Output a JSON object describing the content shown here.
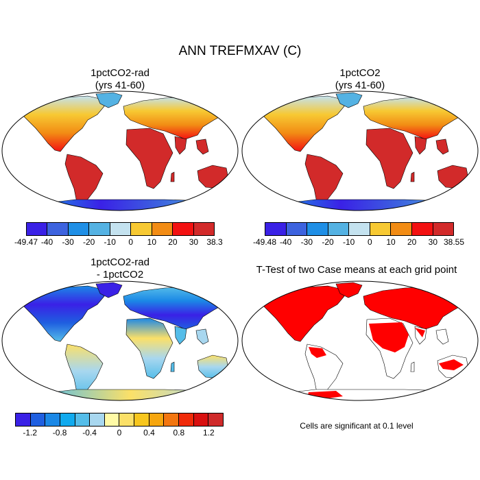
{
  "title": "ANN TREFMXAV (C)",
  "panels": [
    {
      "id": "p1",
      "title_line1": "1pctCO2-rad",
      "title_line2": "(yrs 41-60)",
      "kind": "abs"
    },
    {
      "id": "p2",
      "title_line1": "1pctCO2",
      "title_line2": "(yrs 41-60)",
      "kind": "abs"
    },
    {
      "id": "p3",
      "title_line1": "1pctCO2-rad",
      "title_line2": "- 1pctCO2",
      "kind": "diff"
    },
    {
      "id": "p4",
      "title_line1": "T-Test of two Case means at each grid point",
      "title_line2": "",
      "kind": "ttest"
    }
  ],
  "colorbars": [
    {
      "id": "cb1",
      "labels": [
        "-49.47",
        "-40",
        "-30",
        "-20",
        "-10",
        "0",
        "10",
        "20",
        "30",
        "38.3"
      ],
      "colors": [
        "#3a21e6",
        "#3d63df",
        "#1f8fe6",
        "#54b2e3",
        "#c4e2ef",
        "#f7c933",
        "#f28c14",
        "#f31111",
        "#d22a2a"
      ]
    },
    {
      "id": "cb2",
      "labels": [
        "-49.48",
        "-40",
        "-30",
        "-20",
        "-10",
        "0",
        "10",
        "20",
        "30",
        "38.55"
      ],
      "colors": [
        "#3a21e6",
        "#3d63df",
        "#1f8fe6",
        "#54b2e3",
        "#c4e2ef",
        "#f7c933",
        "#f28c14",
        "#f31111",
        "#d22a2a"
      ]
    },
    {
      "id": "cb3",
      "labels": [
        "-1.2",
        "-0.8",
        "-0.4",
        "0",
        "0.4",
        "0.8",
        "1.2"
      ],
      "colors": [
        "#3a21e6",
        "#1f5fe0",
        "#1b88e6",
        "#11aaee",
        "#55bde9",
        "#a8d7ef",
        "#fffaa6",
        "#fbe068",
        "#f7c61e",
        "#f6a60e",
        "#f37610",
        "#f02b0a",
        "#d91010",
        "#cf2a2a"
      ]
    }
  ],
  "note": "Cells are significant at 0.1 level"
}
